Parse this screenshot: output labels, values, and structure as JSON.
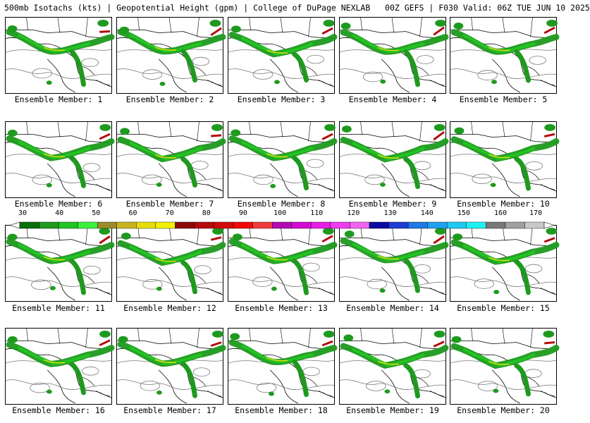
{
  "header": {
    "title": "500mb Isotachs (kts) | Geopotential Height (gpm) | College of DuPage NEXLAB   00Z GEFS | F030 Valid: 06Z TUE JUN 10 2025"
  },
  "members": [
    "Ensemble Member: 1",
    "Ensemble Member: 2",
    "Ensemble Member: 3",
    "Ensemble Member: 4",
    "Ensemble Member: 5",
    "Ensemble Member: 6",
    "Ensemble Member: 7",
    "Ensemble Member: 8",
    "Ensemble Member: 9",
    "Ensemble Member: 10",
    "Ensemble Member: 11",
    "Ensemble Member: 12",
    "Ensemble Member: 13",
    "Ensemble Member: 14",
    "Ensemble Member: 15",
    "Ensemble Member: 16",
    "Ensemble Member: 17",
    "Ensemble Member: 18",
    "Ensemble Member: 19",
    "Ensemble Member: 20"
  ],
  "colorbar": {
    "ticks": [
      "30",
      "40",
      "50",
      "60",
      "70",
      "80",
      "90",
      "100",
      "110",
      "120",
      "130",
      "140",
      "150",
      "160",
      "170"
    ],
    "colors": [
      "#0a6e0a",
      "#1e9a1e",
      "#22c422",
      "#3cf03c",
      "#9a8a2a",
      "#c8b41e",
      "#e6dc0a",
      "#f0f000",
      "#8c0a0a",
      "#b40a0a",
      "#d20a0a",
      "#f00a0a",
      "#f03c3c",
      "#b40ab4",
      "#d20ad2",
      "#e61ee6",
      "#f03cf0",
      "#f064f0",
      "#0a0aa0",
      "#1e3cd2",
      "#1e78e6",
      "#1ea0f0",
      "#1ec8f0",
      "#1ef0f0",
      "#787878",
      "#a0a0a0",
      "#c8c8c8"
    ]
  }
}
